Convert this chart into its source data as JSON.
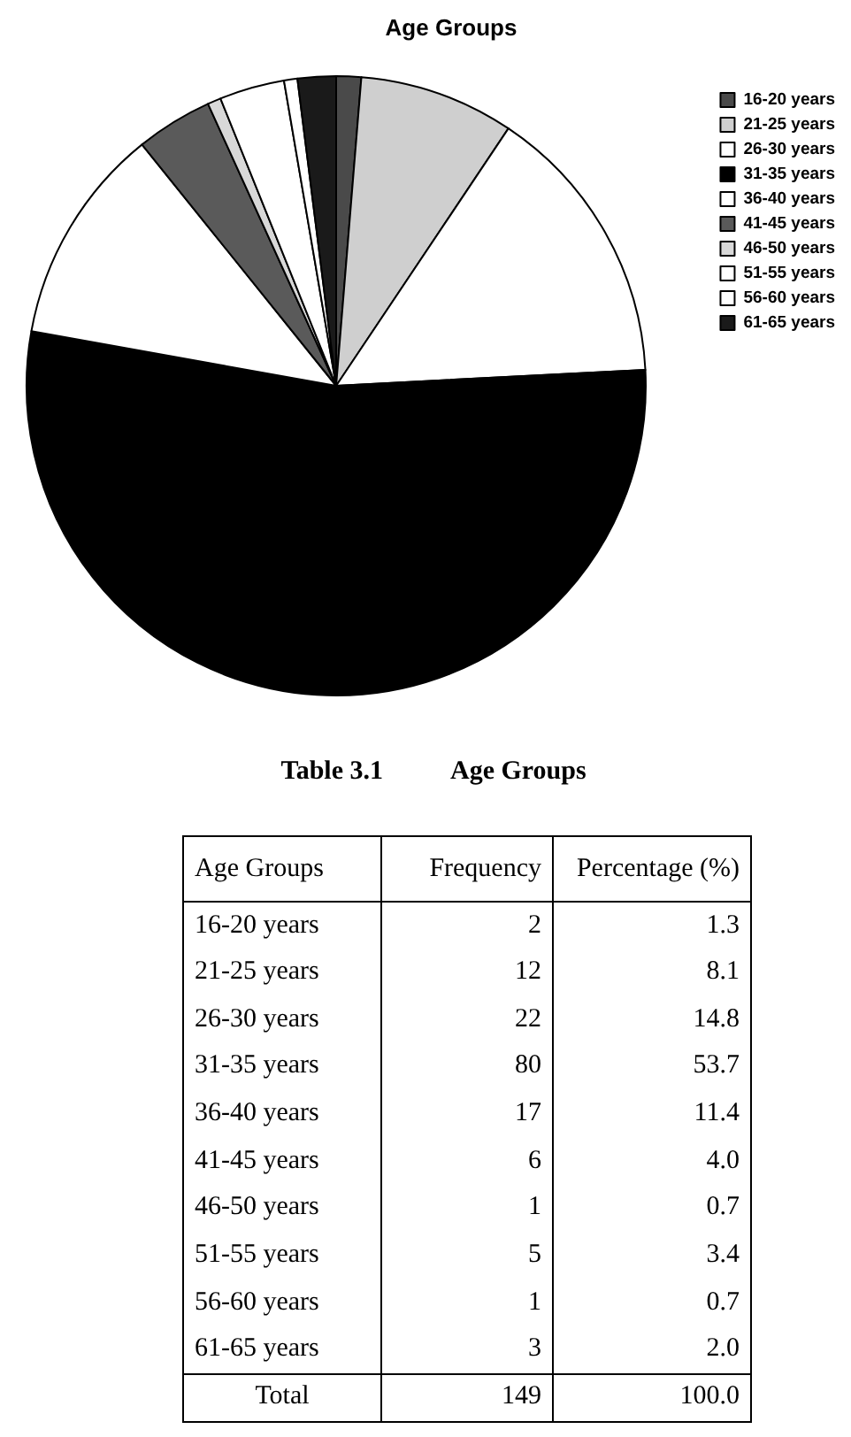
{
  "chart_data": {
    "type": "pie",
    "title": "Age Groups",
    "categories": [
      "16-20 years",
      "21-25 years",
      "26-30 years",
      "31-35 years",
      "36-40 years",
      "41-45 years",
      "46-50 years",
      "51-55 years",
      "56-60 years",
      "61-65 years"
    ],
    "values": [
      1.3,
      8.1,
      14.8,
      53.7,
      11.4,
      4.0,
      0.7,
      3.4,
      0.7,
      2.0
    ],
    "colors": [
      "#4a4a4a",
      "#cfcfcf",
      "#ffffff",
      "#000000",
      "#ffffff",
      "#5a5a5a",
      "#d8d8d8",
      "#ffffff",
      "#ffffff",
      "#1a1a1a"
    ],
    "legend": "top right",
    "annotations": [
      "Table 3.1",
      "Age Groups",
      "Age Groups",
      "Frequency",
      "Percentage (%)",
      "2",
      "1.3",
      "12",
      "8.1",
      "22",
      "14.8",
      "80",
      "53.7",
      "17",
      "11.4",
      "6",
      "4.0",
      "1",
      "0.7",
      "5",
      "3.4",
      "1",
      "0.7",
      "3",
      "2.0",
      "Total",
      "149",
      "100.0"
    ]
  }
}
